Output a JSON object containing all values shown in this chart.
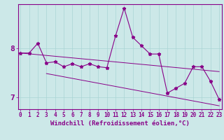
{
  "xlabel": "Windchill (Refroidissement éolien,°C)",
  "bg_color": "#cce8e8",
  "line_color": "#880088",
  "x_ticks": [
    0,
    1,
    2,
    3,
    4,
    5,
    6,
    7,
    8,
    9,
    10,
    11,
    12,
    13,
    14,
    15,
    16,
    17,
    18,
    19,
    20,
    21,
    22,
    23
  ],
  "y_ticks": [
    7,
    8
  ],
  "xlim": [
    -0.3,
    23.3
  ],
  "ylim": [
    6.75,
    8.9
  ],
  "series1_x": [
    0,
    1,
    2,
    3,
    4,
    5,
    6,
    7,
    8,
    9,
    10,
    11,
    12,
    13,
    14,
    15,
    16,
    17,
    18,
    19,
    20,
    21,
    22,
    23
  ],
  "series1_y": [
    7.9,
    7.9,
    8.1,
    7.7,
    7.72,
    7.62,
    7.68,
    7.62,
    7.68,
    7.62,
    7.6,
    8.25,
    8.82,
    8.22,
    8.05,
    7.88,
    7.88,
    7.08,
    7.18,
    7.28,
    7.62,
    7.62,
    7.32,
    6.95
  ],
  "series2_x": [
    0,
    23
  ],
  "series2_y": [
    7.9,
    7.52
  ],
  "series3_x": [
    3,
    23
  ],
  "series3_y": [
    7.48,
    6.82
  ],
  "grid_color": "#aad4d4",
  "tick_fontsize": 5.5,
  "xlabel_fontsize": 6.5,
  "ytick_fontsize": 8
}
